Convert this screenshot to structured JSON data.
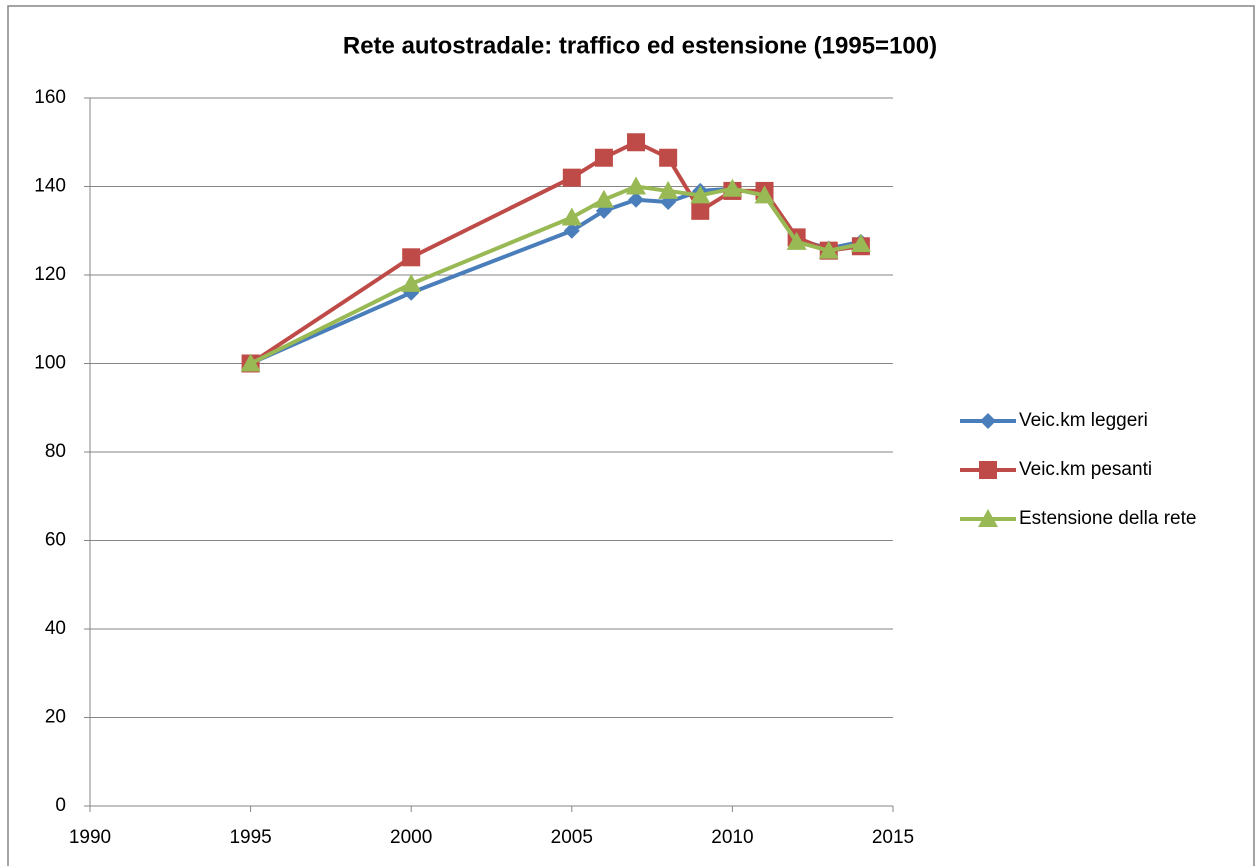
{
  "chart_data": {
    "type": "line",
    "title": "Rete autostradale: traffico ed estensione (1995=100)",
    "x": [
      1995,
      2000,
      2005,
      2006,
      2007,
      2008,
      2009,
      2010,
      2011,
      2012,
      2013,
      2014
    ],
    "series": [
      {
        "name": "Veic.km leggeri",
        "color": "#4a7ebb",
        "marker": "diamond",
        "values": [
          100,
          116,
          130,
          134.5,
          137,
          136.5,
          139,
          139.5,
          138,
          128,
          126,
          127.5
        ]
      },
      {
        "name": "Veic.km pesanti",
        "color": "#be4b48",
        "marker": "square",
        "values": [
          100,
          124,
          142,
          146.5,
          150,
          146.5,
          134.5,
          139,
          139,
          128.5,
          125.5,
          126.5
        ]
      },
      {
        "name": "Estensione della rete",
        "color": "#98b954",
        "marker": "triangle",
        "values": [
          100,
          118,
          133,
          137,
          140,
          139,
          138,
          139.5,
          138,
          127.5,
          125.5,
          127
        ]
      }
    ],
    "xlim": [
      1990,
      2015
    ],
    "xticks": [
      1990,
      1995,
      2000,
      2005,
      2010,
      2015
    ],
    "ylim": [
      0,
      160
    ],
    "yticks": [
      0,
      20,
      40,
      60,
      80,
      100,
      120,
      140,
      160
    ],
    "grid": true,
    "legend": "right"
  }
}
